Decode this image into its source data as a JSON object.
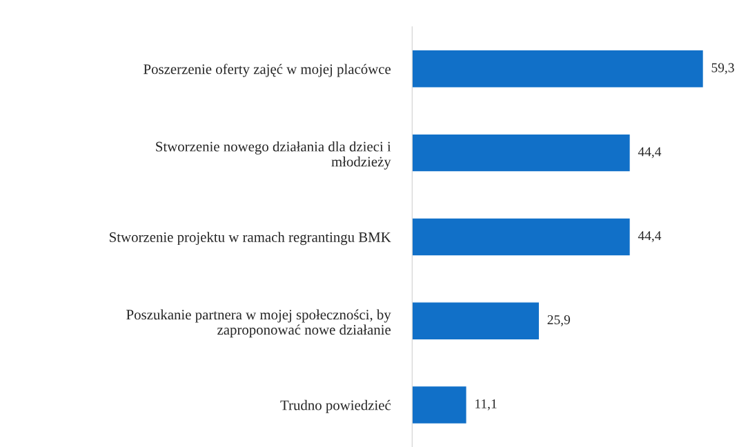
{
  "chart_data": {
    "type": "bar",
    "orientation": "horizontal",
    "categories": [
      "Poszerzenie oferty zajęć w mojej placówce",
      "Stworzenie nowego działania dla dzieci i młodzieży",
      "Stworzenie projektu w ramach regrantingu BMK",
      "Poszukanie partnera w mojej społeczności, by zaproponować nowe działanie",
      "Trudno powiedzieć"
    ],
    "values": [
      59.3,
      44.4,
      44.4,
      25.9,
      11.1
    ],
    "value_labels": [
      "59,3",
      "44,4",
      "44,4",
      "25,9",
      "11,1"
    ],
    "color": "#1170c8",
    "grid": false,
    "legend": false
  }
}
